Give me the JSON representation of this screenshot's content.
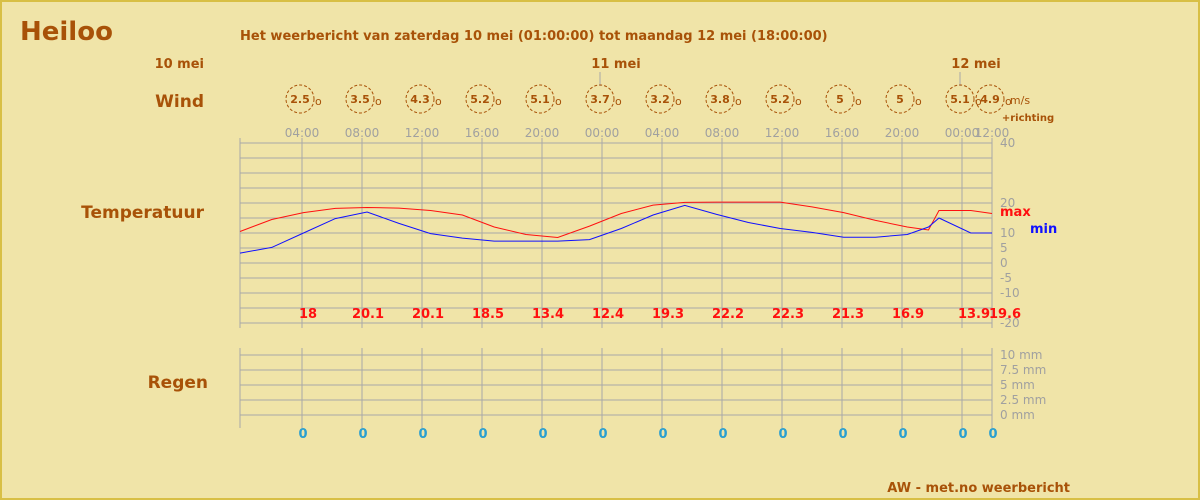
{
  "header": {
    "place": "Heiloo",
    "subtitle": "Het weerbericht van zaterdag 10 mei (01:00:00) tot maandag 12 mei (18:00:00)"
  },
  "days": [
    "10 mei",
    "11 mei",
    "12 mei"
  ],
  "rows": {
    "wind": "Wind",
    "temperature": "Temperatuur",
    "rain": "Regen"
  },
  "wind": {
    "values": [
      "2.5",
      "3.5",
      "4.3",
      "5.2",
      "5.1",
      "3.7",
      "3.2",
      "3.8",
      "5.2",
      "5",
      "5",
      "5.1",
      "4.9"
    ],
    "unit": "m/s",
    "direction_label": "+richting",
    "marker": "o"
  },
  "times": [
    "04:00",
    "08:00",
    "12:00",
    "16:00",
    "20:00",
    "00:00",
    "04:00",
    "08:00",
    "12:00",
    "16:00",
    "20:00",
    "00:00",
    "12:00"
  ],
  "chart_data": {
    "type": "line",
    "title": "Temperatuur",
    "ylim": [
      -20,
      40
    ],
    "y_ticks": [
      40,
      20,
      10,
      5,
      0,
      -5,
      -10,
      -20
    ],
    "series": [
      {
        "name": "max",
        "color": "#ff1010",
        "x_hours": [
          0,
          3,
          6,
          9,
          12,
          15,
          18,
          21,
          24,
          27,
          30,
          33,
          36,
          39,
          42,
          45,
          48,
          51,
          54,
          57,
          60,
          63,
          65,
          66,
          69,
          71
        ],
        "values": [
          10.5,
          14.5,
          16.8,
          18.2,
          18.5,
          18.3,
          17.5,
          16,
          12,
          9.5,
          8.5,
          12.3,
          16.5,
          19.3,
          20.2,
          20.3,
          20.3,
          20.3,
          18.7,
          16.8,
          14.2,
          12,
          11,
          17.5,
          17.5,
          16.5
        ]
      },
      {
        "name": "min",
        "color": "#1010ff",
        "x_hours": [
          0,
          3,
          6,
          9,
          12,
          15,
          18,
          21,
          24,
          27,
          30,
          33,
          36,
          39,
          42,
          45,
          48,
          51,
          54,
          57,
          60,
          63,
          65,
          66,
          69,
          71
        ],
        "values": [
          3.3,
          5.2,
          10,
          14.8,
          17,
          13.2,
          9.8,
          8.3,
          7.3,
          7.3,
          7.3,
          7.8,
          11.5,
          16,
          19.2,
          16.2,
          13.5,
          11.5,
          10.2,
          8.6,
          8.6,
          9.5,
          12,
          15,
          10,
          10
        ]
      }
    ],
    "daily_max_labels": [
      "18",
      "20.1",
      "20.1",
      "18.5",
      "13.4",
      "12.4",
      "19.3",
      "22.2",
      "22.3",
      "21.3",
      "16.9",
      "13.9",
      "19.6"
    ]
  },
  "rain": {
    "ticks": [
      "10 mm",
      "7.5 mm",
      "5 mm",
      "2.5 mm",
      "0 mm"
    ],
    "values": [
      "0",
      "0",
      "0",
      "0",
      "0",
      "0",
      "0",
      "0",
      "0",
      "0",
      "0",
      "0",
      "0"
    ]
  },
  "footer": {
    "credit": "AW - met.no weerbericht"
  },
  "colors": {
    "background": "#f0e4a8",
    "accent": "#a85208",
    "max": "#ff1010",
    "min": "#1010ff",
    "rain": "#2a9fd0",
    "grid": "#a8a8a8"
  }
}
